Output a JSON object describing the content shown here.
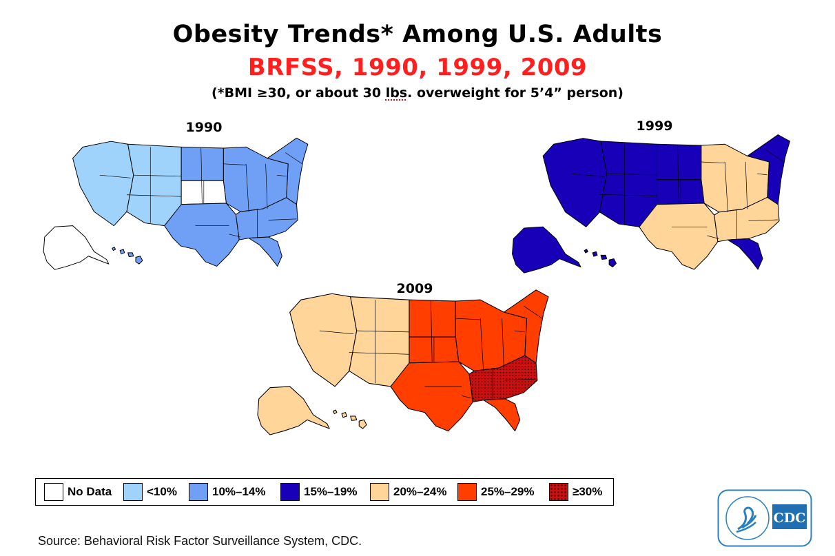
{
  "title": "Obesity Trends* Among U.S. Adults",
  "subtitle": "BRFSS, 1990, 1999, 2009",
  "note": {
    "before": "(*BMI ≥30, or about 30 ",
    "squiggle": "lbs",
    "after": ". overweight for 5’4” person)"
  },
  "colors": {
    "no_data": "#ffffff",
    "lt10": "#9fd3fb",
    "p10_14": "#6fa0f5",
    "p15_19": "#1800b8",
    "p20_24": "#ffd59a",
    "p25_29": "#ff3e00",
    "ge30": "#cc1010"
  },
  "maps": [
    {
      "year": "1990",
      "categories": {
        "west": "lt10",
        "mountain": "lt10",
        "plains_north": "p10_14",
        "plains_central": "no_data",
        "south_central": "p10_14",
        "midwest": "p10_14",
        "southeast": "p10_14",
        "northeast": "p10_14",
        "florida": "p10_14",
        "alaska": "no_data",
        "hawaii": "p10_14"
      }
    },
    {
      "year": "1999",
      "categories": {
        "west": "p15_19",
        "mountain": "p15_19",
        "plains_north": "p15_19",
        "plains_central": "p15_19",
        "south_central": "p20_24",
        "midwest": "p20_24",
        "southeast": "p20_24",
        "northeast": "p15_19",
        "florida": "p15_19",
        "alaska": "p15_19",
        "hawaii": "p15_19"
      }
    },
    {
      "year": "2009",
      "categories": {
        "west": "p20_24",
        "mountain": "p20_24",
        "plains_north": "p25_29",
        "plains_central": "p25_29",
        "south_central": "p25_29",
        "midwest": "p25_29",
        "southeast": "ge30",
        "northeast": "p25_29",
        "florida": "p25_29",
        "alaska": "p20_24",
        "hawaii": "p20_24"
      }
    }
  ],
  "legend": [
    {
      "label": "No Data",
      "color": "#ffffff",
      "dotted": false
    },
    {
      "label": "<10%",
      "color": "#9fd3fb",
      "dotted": false
    },
    {
      "label": "10%–14%",
      "color": "#6fa0f5",
      "dotted": false
    },
    {
      "label": "15%–19%",
      "color": "#1800b8",
      "dotted": false
    },
    {
      "label": "20%–24%",
      "color": "#ffd59a",
      "dotted": false
    },
    {
      "label": "25%–29%",
      "color": "#ff3e00",
      "dotted": false
    },
    {
      "label": "≥30%",
      "color": "#cc1010",
      "dotted": true
    }
  ],
  "source": "Source: Behavioral Risk Factor Surveillance System, CDC.",
  "logo": {
    "text": "CDC"
  }
}
